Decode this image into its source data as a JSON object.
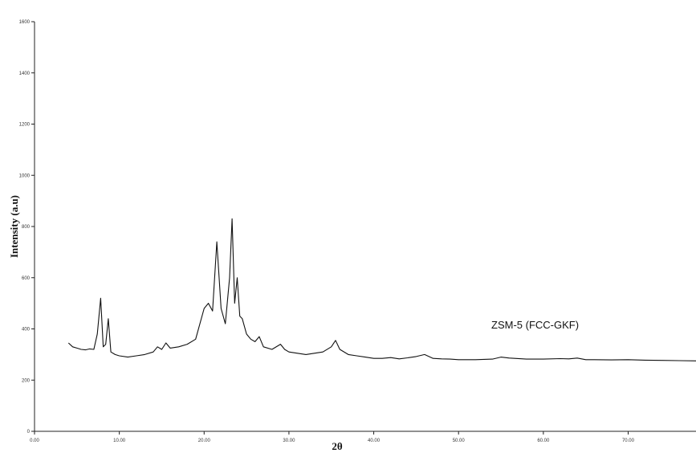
{
  "chart_data": {
    "type": "line",
    "xlabel": "2θ",
    "ylabel": "Intensity (a.u)",
    "annotation": "ZSM-5 (FCC-GKF)",
    "xlim": [
      0,
      78
    ],
    "ylim": [
      0,
      1600
    ],
    "x_ticks": [
      {
        "value": 0,
        "label": "0.00"
      },
      {
        "value": 10,
        "label": "10.00"
      },
      {
        "value": 20,
        "label": "20.00"
      },
      {
        "value": 30,
        "label": "30.00"
      },
      {
        "value": 40,
        "label": "40.00"
      },
      {
        "value": 50,
        "label": "50.00"
      },
      {
        "value": 60,
        "label": "60.00"
      },
      {
        "value": 70,
        "label": "70.00"
      }
    ],
    "y_ticks": [
      {
        "value": 0,
        "label": "0"
      },
      {
        "value": 200,
        "label": "200"
      },
      {
        "value": 400,
        "label": "400"
      },
      {
        "value": 600,
        "label": "600"
      },
      {
        "value": 800,
        "label": "800"
      },
      {
        "value": 1000,
        "label": "1000"
      },
      {
        "value": 1200,
        "label": "1200"
      },
      {
        "value": 1400,
        "label": "1400"
      },
      {
        "value": 1600,
        "label": "1600"
      }
    ],
    "grid": false,
    "series": [
      {
        "color": "#111111",
        "x": [
          4.0,
          4.5,
          5.0,
          5.5,
          6.0,
          6.5,
          7.0,
          7.4,
          7.8,
          8.1,
          8.4,
          8.7,
          9.0,
          9.5,
          10.0,
          11.0,
          12.0,
          13.0,
          14.0,
          14.5,
          15.0,
          15.5,
          16.0,
          17.0,
          18.0,
          19.0,
          19.5,
          20.0,
          20.5,
          21.0,
          21.5,
          22.0,
          22.5,
          23.0,
          23.3,
          23.6,
          23.9,
          24.2,
          24.5,
          25.0,
          25.5,
          26.0,
          26.5,
          27.0,
          28.0,
          29.0,
          29.5,
          30.0,
          31.0,
          32.0,
          33.0,
          34.0,
          35.0,
          35.5,
          36.0,
          37.0,
          38.0,
          39.0,
          40.0,
          41.0,
          42.0,
          43.0,
          44.0,
          45.0,
          46.0,
          47.0,
          48.0,
          49.0,
          50.0,
          52.0,
          54.0,
          55.0,
          56.0,
          58.0,
          60.0,
          62.0,
          63.0,
          64.0,
          65.0,
          66.0,
          68.0,
          70.0,
          72.0,
          74.0,
          76.0,
          78.0
        ],
        "y": [
          345,
          330,
          325,
          320,
          318,
          322,
          320,
          380,
          520,
          330,
          340,
          440,
          310,
          300,
          295,
          290,
          295,
          300,
          310,
          330,
          320,
          345,
          325,
          330,
          340,
          360,
          420,
          480,
          500,
          470,
          740,
          480,
          420,
          600,
          830,
          500,
          600,
          450,
          440,
          380,
          360,
          350,
          370,
          330,
          320,
          340,
          320,
          310,
          305,
          300,
          305,
          310,
          330,
          355,
          320,
          300,
          295,
          290,
          285,
          285,
          288,
          283,
          287,
          292,
          300,
          285,
          283,
          282,
          280,
          280,
          282,
          290,
          286,
          282,
          282,
          284,
          283,
          286,
          280,
          280,
          279,
          280,
          278,
          277,
          276,
          275
        ]
      }
    ]
  }
}
